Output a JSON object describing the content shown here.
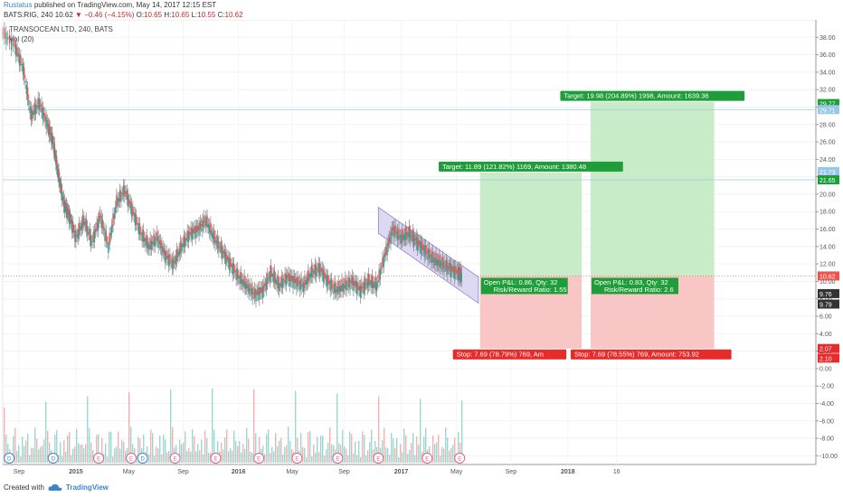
{
  "header": {
    "line1": {
      "user": "Rustatus",
      "text": "published on TradingView.com, May 14, 2017 12:15 EST"
    },
    "line2": {
      "symbol": "BATS:RIG, 240",
      "last": "10.62",
      "arrow": "▼",
      "change": "−0.46 (−4.15%)",
      "o_label": "O:",
      "o": "10.65",
      "h_label": "H:",
      "h": "10.65",
      "l_label": "L:",
      "l": "10.55",
      "c_label": "C:",
      "c": "10.62"
    }
  },
  "legend": {
    "symbol_name": "TRANSOCEAN LTD, 240, BATS",
    "volume": "Vol (20)"
  },
  "footer": {
    "created": "Created with",
    "brand": "TradingView"
  },
  "colors": {
    "up": "#26a69a",
    "down": "#ef5350",
    "candle": "#6d6d6d",
    "target_zone": "#c8ecc8",
    "stop_zone": "#f9c6c6",
    "target_label_bg": "#1f9d3a",
    "stop_label_bg": "#e62b2b",
    "channel_fill": "#d4d0f0",
    "channel_stroke": "#8a84c8",
    "price_line": "#e65a3c",
    "hline": "#9ac7e6"
  },
  "chart_data": {
    "type": "candlestick",
    "title": "TRANSOCEAN LTD, 240, BATS",
    "y_axis": {
      "min": -11,
      "max": 40,
      "ticks": [
        "38.00",
        "36.00",
        "34.00",
        "32.00",
        "30.00",
        "28.00",
        "26.00",
        "24.00",
        "22.00",
        "20.00",
        "18.00",
        "16.00",
        "14.00",
        "12.00",
        "10.00",
        "8.00",
        "6.00",
        "4.00",
        "2.00",
        "0.00",
        "-2.00",
        "-4.00",
        "-6.00",
        "-8.00",
        "-10.00"
      ],
      "tick_values": [
        38,
        36,
        34,
        32,
        30,
        28,
        26,
        24,
        22,
        20,
        18,
        16,
        14,
        12,
        10,
        8,
        6,
        4,
        2,
        0,
        -2,
        -4,
        -6,
        -8,
        -10
      ]
    },
    "x_axis": {
      "labels": [
        "Sep",
        "2015",
        "May",
        "Sep",
        "2016",
        "May",
        "Sep",
        "2017",
        "May",
        "Sep",
        "2018",
        "16"
      ],
      "label_positions": [
        0.02,
        0.09,
        0.155,
        0.222,
        0.29,
        0.356,
        0.42,
        0.49,
        0.558,
        0.625,
        0.695,
        0.755
      ]
    },
    "price_series": [
      {
        "x": 0.0,
        "y": 38.5
      },
      {
        "x": 0.015,
        "y": 37.0
      },
      {
        "x": 0.025,
        "y": 34.5
      },
      {
        "x": 0.035,
        "y": 29.0
      },
      {
        "x": 0.045,
        "y": 30.5
      },
      {
        "x": 0.055,
        "y": 28.0
      },
      {
        "x": 0.062,
        "y": 26.0
      },
      {
        "x": 0.068,
        "y": 22.5
      },
      {
        "x": 0.075,
        "y": 19.0
      },
      {
        "x": 0.082,
        "y": 17.5
      },
      {
        "x": 0.09,
        "y": 15.0
      },
      {
        "x": 0.1,
        "y": 17.0
      },
      {
        "x": 0.11,
        "y": 14.5
      },
      {
        "x": 0.12,
        "y": 17.5
      },
      {
        "x": 0.13,
        "y": 14.0
      },
      {
        "x": 0.14,
        "y": 19.0
      },
      {
        "x": 0.15,
        "y": 20.5
      },
      {
        "x": 0.16,
        "y": 18.0
      },
      {
        "x": 0.17,
        "y": 15.5
      },
      {
        "x": 0.18,
        "y": 14.0
      },
      {
        "x": 0.19,
        "y": 15.0
      },
      {
        "x": 0.2,
        "y": 13.0
      },
      {
        "x": 0.21,
        "y": 12.0
      },
      {
        "x": 0.22,
        "y": 14.0
      },
      {
        "x": 0.23,
        "y": 15.5
      },
      {
        "x": 0.24,
        "y": 16.0
      },
      {
        "x": 0.25,
        "y": 17.0
      },
      {
        "x": 0.26,
        "y": 15.0
      },
      {
        "x": 0.27,
        "y": 13.5
      },
      {
        "x": 0.28,
        "y": 12.0
      },
      {
        "x": 0.29,
        "y": 10.5
      },
      {
        "x": 0.3,
        "y": 9.5
      },
      {
        "x": 0.31,
        "y": 8.5
      },
      {
        "x": 0.32,
        "y": 9.0
      },
      {
        "x": 0.33,
        "y": 11.0
      },
      {
        "x": 0.34,
        "y": 9.5
      },
      {
        "x": 0.35,
        "y": 10.5
      },
      {
        "x": 0.36,
        "y": 10.0
      },
      {
        "x": 0.37,
        "y": 9.5
      },
      {
        "x": 0.38,
        "y": 11.0
      },
      {
        "x": 0.39,
        "y": 11.5
      },
      {
        "x": 0.4,
        "y": 10.0
      },
      {
        "x": 0.41,
        "y": 9.0
      },
      {
        "x": 0.42,
        "y": 9.5
      },
      {
        "x": 0.43,
        "y": 10.0
      },
      {
        "x": 0.44,
        "y": 9.0
      },
      {
        "x": 0.45,
        "y": 10.0
      },
      {
        "x": 0.46,
        "y": 9.5
      },
      {
        "x": 0.47,
        "y": 13.0
      },
      {
        "x": 0.48,
        "y": 16.0
      },
      {
        "x": 0.49,
        "y": 15.0
      },
      {
        "x": 0.5,
        "y": 15.5
      },
      {
        "x": 0.51,
        "y": 14.5
      },
      {
        "x": 0.52,
        "y": 13.5
      },
      {
        "x": 0.53,
        "y": 12.5
      },
      {
        "x": 0.54,
        "y": 12.0
      },
      {
        "x": 0.55,
        "y": 11.5
      },
      {
        "x": 0.56,
        "y": 11.0
      },
      {
        "x": 0.565,
        "y": 10.62
      }
    ],
    "volume_series": [],
    "channel": {
      "upper": [
        {
          "x": 0.462,
          "y": 18.5
        },
        {
          "x": 0.585,
          "y": 10.5
        }
      ],
      "lower": [
        {
          "x": 0.462,
          "y": 15.5
        },
        {
          "x": 0.585,
          "y": 7.5
        }
      ]
    },
    "current_price": 10.62,
    "horizontal_lines": [
      29.71,
      21.65
    ],
    "positions": [
      {
        "x_start": 0.587,
        "x_end": 0.712,
        "entry": 10.62,
        "target": 22.5,
        "stop": 2.3,
        "target_label": "Target: 11.89 (121.82%) 1169, Amount: 1380.48",
        "stop_label": "Stop: 7.69 (78.79%) 769, Am",
        "pnl_label": "Open P&L: 0.86, Qty: 32",
        "rr_label": "Risk/Reward Ratio: 1.55"
      },
      {
        "x_start": 0.723,
        "x_end": 0.875,
        "entry": 10.62,
        "target": 30.6,
        "stop": 2.3,
        "target_label": "Target: 19.98 (204.89%) 1998, Amount: 1639.36",
        "stop_label": "Stop: 7.69 (78.55%) 769, Amount: 753.92",
        "pnl_label": "Open P&L: 0.83, Qty: 32",
        "rr_label": "Risk/Reward Ratio: 2.6"
      }
    ],
    "price_tags": [
      {
        "value": "29.77",
        "price": 30.4,
        "bg": "#1f9d3a"
      },
      {
        "value": "29.71",
        "price": 29.71,
        "bg": "#9ac7e6"
      },
      {
        "value": "21.73",
        "price": 22.6,
        "bg": "#9ac7e6"
      },
      {
        "value": "21.65",
        "price": 21.65,
        "bg": "#1f9d3a"
      },
      {
        "value": "10.62",
        "price": 10.62,
        "bg": "#ef5350"
      },
      {
        "value": "9.76",
        "price": 8.6,
        "bg": "#333333"
      },
      {
        "value": "9.79",
        "price": 7.4,
        "bg": "#333333"
      },
      {
        "value": "2.07",
        "price": 2.3,
        "bg": "#e62b2b"
      },
      {
        "value": "2.10",
        "price": 1.2,
        "bg": "#e62b2b"
      }
    ],
    "event_markers": [
      {
        "x": 0.008,
        "kind": "D"
      },
      {
        "x": 0.062,
        "kind": "D"
      },
      {
        "x": 0.118,
        "kind": "E"
      },
      {
        "x": 0.158,
        "kind": "E"
      },
      {
        "x": 0.172,
        "kind": "D"
      },
      {
        "x": 0.212,
        "kind": "E"
      },
      {
        "x": 0.262,
        "kind": "E"
      },
      {
        "x": 0.315,
        "kind": "E"
      },
      {
        "x": 0.362,
        "kind": "E"
      },
      {
        "x": 0.412,
        "kind": "E"
      },
      {
        "x": 0.462,
        "kind": "E"
      },
      {
        "x": 0.522,
        "kind": "E"
      },
      {
        "x": 0.562,
        "kind": "E"
      }
    ]
  }
}
